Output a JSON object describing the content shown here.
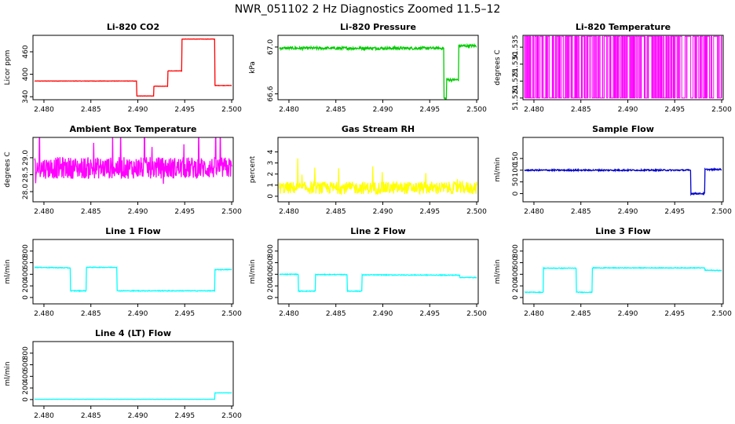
{
  "figure": {
    "title": "NWR_051102  2 Hz Diagnostics Zoomed 11.5–12"
  },
  "chart_data": [
    {
      "id": "co2",
      "type": "line",
      "title": "Li-820 CO2",
      "ylabel": "Licor ppm",
      "color": "#ff0000",
      "xlim": [
        2.479,
        2.5
      ],
      "ylim": [
        332,
        504
      ],
      "xticks": [
        "2.480",
        "2.485",
        "2.490",
        "2.495",
        "2.500"
      ],
      "yticks": [
        340,
        400,
        460
      ],
      "noise": 0.4,
      "x": [
        2.479,
        2.4899,
        2.4899,
        2.4917,
        2.4917,
        2.4932,
        2.4932,
        2.4947,
        2.4947,
        2.4982,
        2.4982,
        2.5
      ],
      "y": [
        382,
        382,
        342,
        342,
        368,
        368,
        409,
        409,
        494,
        494,
        370,
        370
      ]
    },
    {
      "id": "pressure",
      "type": "line",
      "title": "Li-820 Pressure",
      "ylabel": "kPa",
      "color": "#00cc00",
      "xlim": [
        2.479,
        2.5
      ],
      "ylim": [
        66.55,
        67.1
      ],
      "xticks": [
        "2.480",
        "2.485",
        "2.490",
        "2.495",
        "2.500"
      ],
      "yticks": [
        66.6,
        67.0
      ],
      "noise": 0.012,
      "x": [
        2.479,
        2.4965,
        2.4965,
        2.4968,
        2.4968,
        2.4981,
        2.4981,
        2.5
      ],
      "y": [
        66.99,
        66.99,
        66.56,
        66.56,
        66.72,
        66.72,
        67.01,
        67.01
      ]
    },
    {
      "id": "temperature",
      "type": "line",
      "title": "Li-820 Temperature",
      "ylabel": "degrees C",
      "color": "#ff00ff",
      "xlim": [
        2.479,
        2.5
      ],
      "ylim": [
        51.5195,
        51.5385
      ],
      "xticks": [
        "2.480",
        "2.485",
        "2.490",
        "2.495",
        "2.500"
      ],
      "yticks": [
        51.52,
        51.525,
        51.53,
        51.535
      ],
      "x": [
        2.479,
        2.5
      ],
      "y": [
        51.52,
        51.5382
      ]
    },
    {
      "id": "ambient",
      "type": "line",
      "title": "Ambient Box Temperature",
      "ylabel": "degrees C",
      "color": "#ff00ff",
      "xlim": [
        2.479,
        2.5
      ],
      "ylim": [
        27.7,
        29.6
      ],
      "xticks": [
        "2.480",
        "2.485",
        "2.490",
        "2.495",
        "2.500"
      ],
      "yticks": [
        28.0,
        28.5,
        29.0
      ],
      "noise": 0.32,
      "x": [
        2.479,
        2.5
      ],
      "y": [
        28.7,
        28.7
      ]
    },
    {
      "id": "rh",
      "type": "line",
      "title": "Gas Stream RH",
      "ylabel": "percent",
      "color": "#ffff00",
      "xlim": [
        2.479,
        2.5
      ],
      "ylim": [
        -0.5,
        5.3
      ],
      "xticks": [
        "2.480",
        "2.485",
        "2.490",
        "2.495",
        "2.500"
      ],
      "yticks": [
        0,
        1,
        2,
        3,
        4
      ],
      "noise": 0.55,
      "x": [
        2.479,
        2.5
      ],
      "y": [
        0.75,
        0.75
      ]
    },
    {
      "id": "sample_flow",
      "type": "line",
      "title": "Sample Flow",
      "ylabel": "ml/min",
      "color": "#0000cc",
      "xlim": [
        2.479,
        2.5
      ],
      "ylim": [
        -35,
        240
      ],
      "xticks": [
        "2.480",
        "2.485",
        "2.490",
        "2.495",
        "2.500"
      ],
      "yticks": [
        0,
        50,
        100,
        150
      ],
      "noise": 3,
      "x": [
        2.479,
        2.4967,
        2.4967,
        2.4982,
        2.4982,
        2.5
      ],
      "y": [
        100,
        100,
        0,
        0,
        103,
        103
      ]
    },
    {
      "id": "line1",
      "type": "line",
      "title": "Line 1 Flow",
      "ylabel": "ml/min",
      "color": "#00ffff",
      "xlim": [
        2.479,
        2.5
      ],
      "ylim": [
        -110,
        1000
      ],
      "xticks": [
        "2.480",
        "2.485",
        "2.490",
        "2.495",
        "2.500"
      ],
      "yticks": [
        0,
        200,
        400,
        600,
        800
      ],
      "noise": 6,
      "x": [
        2.479,
        2.4828,
        2.4828,
        2.4845,
        2.4845,
        2.4878,
        2.4878,
        2.4982,
        2.4982,
        2.5
      ],
      "y": [
        520,
        510,
        115,
        115,
        520,
        520,
        115,
        115,
        480,
        480
      ]
    },
    {
      "id": "line2",
      "type": "line",
      "title": "Line 2 Flow",
      "ylabel": "ml/min",
      "color": "#00ffff",
      "xlim": [
        2.479,
        2.5
      ],
      "ylim": [
        -110,
        1000
      ],
      "xticks": [
        "2.480",
        "2.485",
        "2.490",
        "2.495",
        "2.500"
      ],
      "yticks": [
        0,
        200,
        400,
        600,
        800
      ],
      "noise": 6,
      "x": [
        2.479,
        2.481,
        2.481,
        2.4828,
        2.4828,
        2.4862,
        2.4862,
        2.4878,
        2.4878,
        2.4982,
        2.4982,
        2.5
      ],
      "y": [
        400,
        400,
        110,
        110,
        395,
        395,
        110,
        110,
        390,
        385,
        345,
        345
      ]
    },
    {
      "id": "line3",
      "type": "line",
      "title": "Line 3 Flow",
      "ylabel": "ml/min",
      "color": "#00ffff",
      "xlim": [
        2.479,
        2.5
      ],
      "ylim": [
        -110,
        1000
      ],
      "xticks": [
        "2.480",
        "2.485",
        "2.490",
        "2.495",
        "2.500"
      ],
      "yticks": [
        0,
        200,
        400,
        600,
        800
      ],
      "noise": 6,
      "x": [
        2.479,
        2.481,
        2.481,
        2.4845,
        2.4845,
        2.4862,
        2.4862,
        2.4982,
        2.4982,
        2.5
      ],
      "y": [
        90,
        90,
        505,
        505,
        90,
        90,
        510,
        510,
        470,
        465
      ]
    },
    {
      "id": "line4",
      "type": "line",
      "title": "Line 4 (LT) Flow",
      "ylabel": "ml/min",
      "color": "#00ffff",
      "xlim": [
        2.479,
        2.5
      ],
      "ylim": [
        -110,
        1000
      ],
      "xticks": [
        "2.480",
        "2.485",
        "2.490",
        "2.495",
        "2.500"
      ],
      "yticks": [
        0,
        200,
        400,
        600,
        800
      ],
      "noise": 1.5,
      "x": [
        2.479,
        2.4982,
        2.4982,
        2.5
      ],
      "y": [
        5,
        5,
        115,
        115
      ]
    }
  ]
}
